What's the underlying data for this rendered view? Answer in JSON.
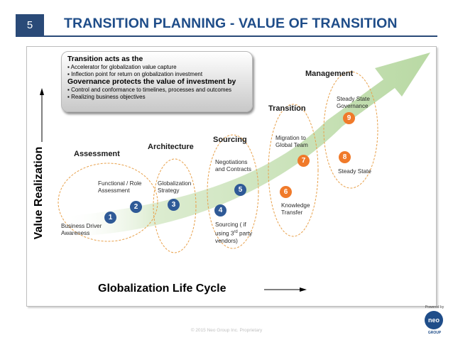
{
  "header": {
    "slide_number": "5",
    "title": "TRANSITION PLANNING - VALUE OF TRANSITION"
  },
  "axes": {
    "y_label": "Value Realization",
    "x_label": "Globalization Life Cycle"
  },
  "callout": {
    "heading1": "Transition acts as the",
    "bullets1": [
      "Accelerator for globalization value capture",
      "Inflection point for return on globalization investment"
    ],
    "heading2": "Governance protects the value of investment by",
    "bullets2": [
      "Control and conformance to timelines, processes and outcomes",
      "Realizing business objectives"
    ]
  },
  "stages": {
    "assessment": "Assessment",
    "architecture": "Architecture",
    "sourcing": "Sourcing",
    "transition": "Transition",
    "management": "Management"
  },
  "steps": [
    {
      "number": "1",
      "color": "blue",
      "label": [
        "Business Driver",
        "Awareness"
      ]
    },
    {
      "number": "2",
      "color": "blue",
      "label": [
        "Functional / Role",
        "Assessment"
      ]
    },
    {
      "number": "3",
      "color": "blue",
      "label": [
        "Globalization",
        "Strategy"
      ]
    },
    {
      "number": "4",
      "color": "blue",
      "label": [
        "Sourcing ( if",
        "using 3rd party",
        "vendors)"
      ]
    },
    {
      "number": "5",
      "color": "blue",
      "label": [
        "Negotiations",
        "and Contracts"
      ]
    },
    {
      "number": "6",
      "color": "orange",
      "label": [
        "Knowledge",
        "Transfer"
      ]
    },
    {
      "number": "7",
      "color": "orange",
      "label": [
        "Migration to",
        "Global Team"
      ]
    },
    {
      "number": "8",
      "color": "orange",
      "label": [
        "Steady State"
      ]
    },
    {
      "number": "9",
      "color": "orange",
      "label": [
        "Steady State",
        "Governance"
      ]
    }
  ],
  "footer": {
    "copyright": "© 2015 Neo Group Inc. Proprietary"
  },
  "logo": {
    "powered_by": "Powered by",
    "name": "neo",
    "group": "GROUP"
  },
  "colors": {
    "title": "#1f4d89",
    "step_blue": "#2f5a97",
    "step_orange": "#f07a2a",
    "arrow_green": "#c5e0b4",
    "oval_stroke": "#e8a04a"
  }
}
